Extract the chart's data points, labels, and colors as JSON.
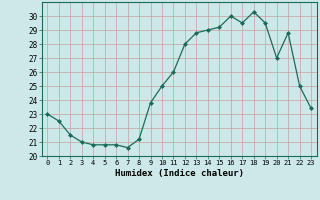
{
  "x": [
    0,
    1,
    2,
    3,
    4,
    5,
    6,
    7,
    8,
    9,
    10,
    11,
    12,
    13,
    14,
    15,
    16,
    17,
    18,
    19,
    20,
    21,
    22,
    23
  ],
  "y": [
    23,
    22.5,
    21.5,
    21,
    20.8,
    20.8,
    20.8,
    20.6,
    21.2,
    23.8,
    25,
    26,
    28,
    28.8,
    29,
    29.2,
    30,
    29.5,
    30.3,
    29.5,
    27,
    28.8,
    25,
    23.4
  ],
  "line_color": "#1a6b5a",
  "marker": "D",
  "marker_size": 2,
  "bg_color": "#cce8e8",
  "grid_color": "#b0c8c8",
  "grid_color_minor": "#d4b0b0",
  "xlabel": "Humidex (Indice chaleur)",
  "ylim": [
    20,
    31
  ],
  "xlim": [
    -0.5,
    23.5
  ],
  "yticks": [
    20,
    21,
    22,
    23,
    24,
    25,
    26,
    27,
    28,
    29,
    30
  ],
  "xticks": [
    0,
    1,
    2,
    3,
    4,
    5,
    6,
    7,
    8,
    9,
    10,
    11,
    12,
    13,
    14,
    15,
    16,
    17,
    18,
    19,
    20,
    21,
    22,
    23
  ]
}
